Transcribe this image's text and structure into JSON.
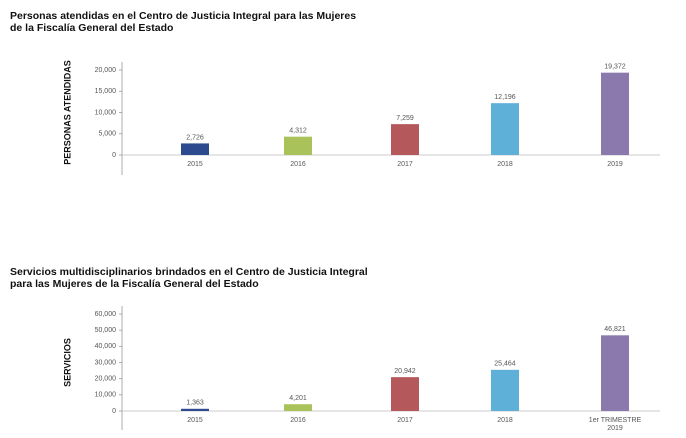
{
  "chart_data": [
    {
      "type": "bar",
      "title": "Personas atendidas en el Centro de Justicia Integral para las Mujeres\nde la Fiscalía General del Estado",
      "ylabel": "PERSONAS ATENDIDAS",
      "categories": [
        "2015",
        "2016",
        "2017",
        "2018",
        "2019"
      ],
      "values": [
        2726,
        4312,
        7259,
        12196,
        19372
      ],
      "value_labels": [
        "2,726",
        "4,312",
        "7,259",
        "12,196",
        "19,372"
      ],
      "colors": [
        "#2d4a8e",
        "#a9c35a",
        "#b5585b",
        "#5eb0d8",
        "#8b79ad"
      ],
      "ylim": [
        0,
        20000
      ],
      "yticks": [
        0,
        {
          "value": 5000,
          "label": "5,000"
        },
        {
          "value": 10000,
          "label": "10,000"
        },
        {
          "value": 15000,
          "label": "15,000"
        },
        {
          "value": 20000,
          "label": "20,000"
        }
      ]
    },
    {
      "type": "bar",
      "title": "Servicios multidisciplinarios brindados en el Centro de Justicia Integral\npara las Mujeres de la Fiscalía General del Estado",
      "ylabel": "SERVICIOS",
      "categories": [
        "2015",
        "2016",
        "2017",
        "2018",
        "1er TRIMESTRE\n2019"
      ],
      "values": [
        1363,
        4201,
        20942,
        25464,
        46821
      ],
      "value_labels": [
        "1,363",
        "4,201",
        "20,942",
        "25,464",
        "46,821"
      ],
      "colors": [
        "#2d4a8e",
        "#a9c35a",
        "#b5585b",
        "#5eb0d8",
        "#8b79ad"
      ],
      "ylim": [
        0,
        60000
      ],
      "yticks": [
        0,
        {
          "value": 10000,
          "label": "10,000"
        },
        {
          "value": 20000,
          "label": "20,000"
        },
        {
          "value": 30000,
          "label": "30,000"
        },
        {
          "value": 40000,
          "label": "40,000"
        },
        {
          "value": 50000,
          "label": "50,000"
        },
        {
          "value": 60000,
          "label": "60,000"
        }
      ]
    }
  ]
}
